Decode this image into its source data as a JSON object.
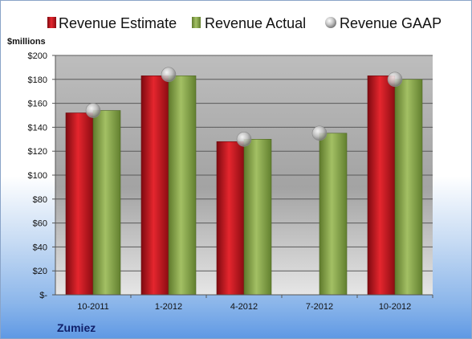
{
  "colors": {
    "estimate": "#c8141c",
    "actual": "#8aa84a",
    "gaap": "#b8b8b8",
    "company": "#10206a"
  },
  "chart_data": {
    "type": "bar",
    "title": "",
    "ylabel": "$millions",
    "xlabel": "",
    "company": "Zumiez",
    "categories": [
      "10-2011",
      "1-2012",
      "4-2012",
      "7-2012",
      "10-2012"
    ],
    "ylim": [
      0,
      200
    ],
    "ytick_values": [
      0,
      20,
      40,
      60,
      80,
      100,
      120,
      140,
      160,
      180,
      200
    ],
    "ytick_labels": [
      "$-",
      "$20",
      "$40",
      "$60",
      "$80",
      "$100",
      "$120",
      "$140",
      "$160",
      "$180",
      "$200"
    ],
    "grid": true,
    "legend_position": "top",
    "series": [
      {
        "name": "Revenue Estimate",
        "kind": "bar",
        "values": [
          152,
          183,
          128,
          null,
          183
        ]
      },
      {
        "name": "Revenue Actual",
        "kind": "bar",
        "values": [
          154,
          183,
          130,
          135,
          180
        ]
      },
      {
        "name": "Revenue GAAP",
        "kind": "marker",
        "values": [
          154,
          184,
          130,
          135,
          180
        ]
      }
    ]
  }
}
